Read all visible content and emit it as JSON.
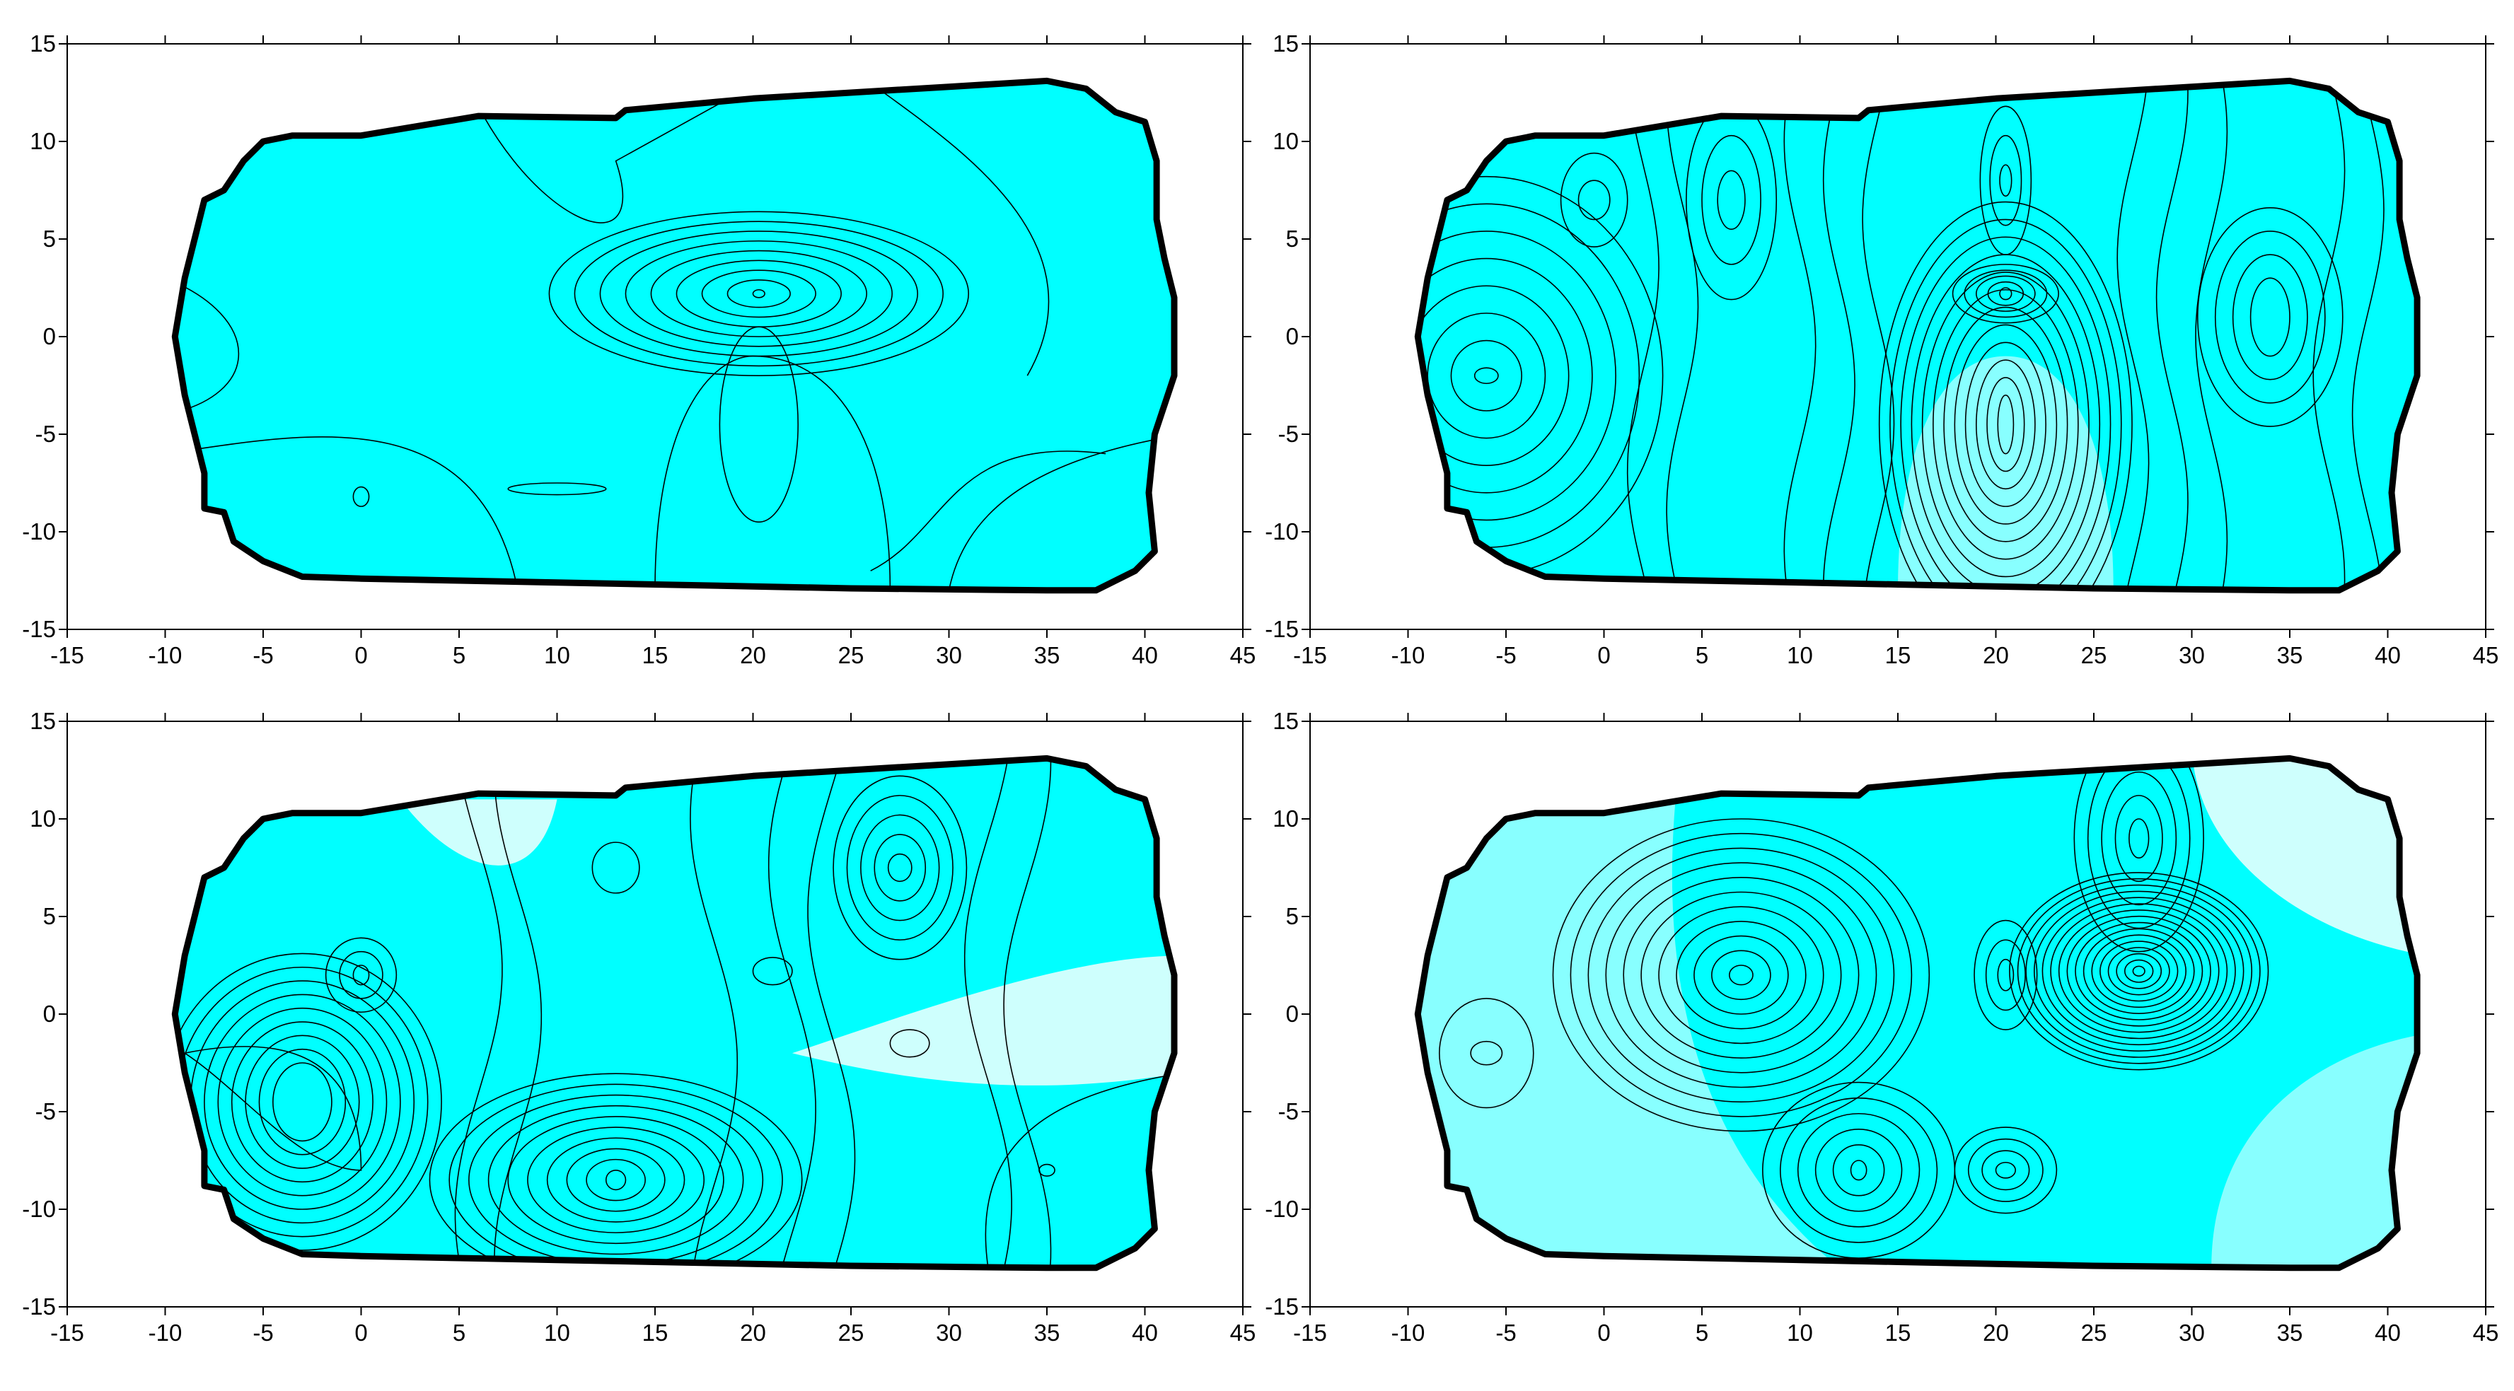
{
  "colors": {
    "band_dark": "#00ffff",
    "band_mid": "#88ffff",
    "band_light": "#cefffd",
    "band_lightest": "#eefffe",
    "line": "#000000",
    "background": "#ffffff"
  },
  "chart_data": [
    {
      "type": "contour",
      "panel": "top-left",
      "xlim": [
        -15,
        45
      ],
      "ylim": [
        -15,
        15
      ],
      "xticks": [
        "-15",
        "-10",
        "-5",
        "0",
        "5",
        "10",
        "15",
        "20",
        "25",
        "30",
        "35",
        "40",
        "45"
      ],
      "yticks": [
        "15",
        "10",
        "5",
        "0",
        "-5",
        "-10",
        "-15"
      ],
      "boundary": [
        [
          -9.5,
          0
        ],
        [
          -9,
          3
        ],
        [
          -8.5,
          5
        ],
        [
          -8,
          7
        ],
        [
          -7,
          7.5
        ],
        [
          -6,
          9
        ],
        [
          -5,
          10
        ],
        [
          -3.5,
          10.3
        ],
        [
          0,
          10.3
        ],
        [
          6,
          11.3
        ],
        [
          13,
          11.2
        ],
        [
          13.5,
          11.6
        ],
        [
          20,
          12.2
        ],
        [
          30,
          12.8
        ],
        [
          35,
          13.1
        ],
        [
          37,
          12.7
        ],
        [
          38.5,
          11.5
        ],
        [
          40,
          11
        ],
        [
          40.3,
          10
        ],
        [
          40.6,
          9
        ],
        [
          40.6,
          6
        ],
        [
          41,
          4
        ],
        [
          41.5,
          2
        ],
        [
          41.5,
          -2
        ],
        [
          40.5,
          -5
        ],
        [
          40.2,
          -8
        ],
        [
          40.5,
          -11
        ],
        [
          39.5,
          -12
        ],
        [
          37.5,
          -13
        ],
        [
          35,
          -13
        ],
        [
          25,
          -12.9
        ],
        [
          15,
          -12.7
        ],
        [
          5,
          -12.5
        ],
        [
          0,
          -12.4
        ],
        [
          -3,
          -12.3
        ],
        [
          -5,
          -11.5
        ],
        [
          -6.5,
          -10.5
        ],
        [
          -7,
          -9
        ],
        [
          -8,
          -8.8
        ],
        [
          -8,
          -7
        ],
        [
          -8.5,
          -5
        ],
        [
          -9,
          -3
        ],
        [
          -9.5,
          0
        ]
      ],
      "features": [
        {
          "kind": "dipole",
          "x": 20.3,
          "y": 2.2,
          "polarity": "closed-top"
        },
        {
          "kind": "closed",
          "x": 20.3,
          "y": -4.5
        },
        {
          "kind": "closed",
          "x": 0,
          "y": -8.2
        },
        {
          "kind": "closed",
          "x": 10,
          "y": -7.8
        }
      ]
    },
    {
      "type": "contour",
      "panel": "top-right",
      "xlim": [
        -15,
        45
      ],
      "ylim": [
        -15,
        15
      ],
      "xticks": [
        "-15",
        "-10",
        "-5",
        "0",
        "5",
        "10",
        "15",
        "20",
        "25",
        "30",
        "35",
        "40",
        "45"
      ],
      "yticks": [
        "15",
        "10",
        "5",
        "0",
        "-5",
        "-10",
        "-15"
      ],
      "features": [
        {
          "kind": "dipole",
          "x": 20.5,
          "y": -2.3,
          "polarity": "strong-bottom"
        },
        {
          "kind": "closed",
          "x": 20.5,
          "y": 7.5
        },
        {
          "kind": "closed",
          "x": -6,
          "y": -2
        },
        {
          "kind": "closed",
          "x": 34,
          "y": 1
        },
        {
          "kind": "closed",
          "x": 6.5,
          "y": 7
        },
        {
          "kind": "closed",
          "x": -0.5,
          "y": 7
        }
      ]
    },
    {
      "type": "contour",
      "panel": "bottom-left",
      "xlim": [
        -15,
        45
      ],
      "ylim": [
        -15,
        15
      ],
      "xticks": [
        "-15",
        "-10",
        "-5",
        "0",
        "5",
        "10",
        "15",
        "20",
        "25",
        "30",
        "35",
        "40",
        "45"
      ],
      "yticks": [
        "15",
        "10",
        "5",
        "0",
        "-5",
        "-10",
        "-15"
      ],
      "features": [
        {
          "kind": "closed",
          "x": -3,
          "y": -4.5
        },
        {
          "kind": "closed",
          "x": 13,
          "y": -8.5
        },
        {
          "kind": "closed",
          "x": 27.5,
          "y": 7.5
        },
        {
          "kind": "closed",
          "x": 0,
          "y": 2
        },
        {
          "kind": "closed",
          "x": 13,
          "y": 7.5
        },
        {
          "kind": "closed",
          "x": 35,
          "y": -8
        }
      ]
    },
    {
      "type": "contour",
      "panel": "bottom-right",
      "xlim": [
        -15,
        45
      ],
      "ylim": [
        -15,
        15
      ],
      "xticks": [
        "-15",
        "-10",
        "-5",
        "0",
        "5",
        "10",
        "15",
        "20",
        "25",
        "30",
        "35",
        "40",
        "45"
      ],
      "yticks": [
        "15",
        "10",
        "5",
        "0",
        "-5",
        "-10",
        "-15"
      ],
      "features": [
        {
          "kind": "dipole",
          "x": 27.3,
          "y": 2.2,
          "polarity": "strong-top"
        },
        {
          "kind": "closed",
          "x": 27.3,
          "y": 9
        },
        {
          "kind": "closed",
          "x": 7,
          "y": 2
        },
        {
          "kind": "closed",
          "x": 20.5,
          "y": 2
        },
        {
          "kind": "closed",
          "x": 13,
          "y": -8
        },
        {
          "kind": "closed",
          "x": 20.5,
          "y": -8
        },
        {
          "kind": "closed",
          "x": -6,
          "y": -2
        }
      ]
    }
  ]
}
